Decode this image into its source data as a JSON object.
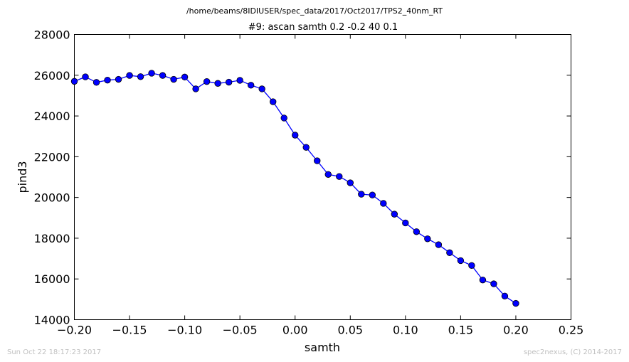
{
  "chart_data": {
    "type": "line",
    "suptitle": "/home/beams/8IDIUSER/spec_data/2017/Oct2017/TPS2_40nm_RT",
    "title": "#9: ascan  samth 0.2 -0.2  40 0.1",
    "xlabel": "samth",
    "ylabel": "pind3",
    "xlim": [
      -0.2,
      0.25
    ],
    "ylim": [
      14000,
      28000
    ],
    "xticks": [
      "−0.20",
      "−0.15",
      "−0.10",
      "−0.05",
      "0.00",
      "0.05",
      "0.10",
      "0.15",
      "0.20",
      "0.25"
    ],
    "yticks": [
      "14000",
      "16000",
      "18000",
      "20000",
      "22000",
      "24000",
      "26000",
      "28000"
    ],
    "grid": false,
    "color": "#0000ff",
    "marker": "circle",
    "x": [
      -0.2,
      -0.19,
      -0.18,
      -0.17,
      -0.16,
      -0.15,
      -0.14,
      -0.13,
      -0.12,
      -0.11,
      -0.1,
      -0.09,
      -0.08,
      -0.07,
      -0.06,
      -0.05,
      -0.04,
      -0.03,
      -0.02,
      -0.01,
      0.0,
      0.01,
      0.02,
      0.03,
      0.04,
      0.05,
      0.06,
      0.07,
      0.08,
      0.09,
      0.1,
      0.11,
      0.12,
      0.13,
      0.14,
      0.15,
      0.16,
      0.17,
      0.18,
      0.19,
      0.2
    ],
    "y": [
      25700,
      25920,
      25650,
      25760,
      25800,
      25990,
      25930,
      26100,
      25990,
      25800,
      25910,
      25330,
      25690,
      25600,
      25660,
      25750,
      25510,
      25330,
      24700,
      23900,
      23060,
      22460,
      21800,
      21130,
      21030,
      20720,
      20160,
      20120,
      19710,
      19180,
      18750,
      18320,
      17970,
      17680,
      17290,
      16900,
      16660,
      15950,
      15760,
      15160,
      14800
    ]
  },
  "footer": {
    "left": "Sun Oct 22 18:17:23 2017",
    "right": "spec2nexus, (C) 2014-2017"
  }
}
